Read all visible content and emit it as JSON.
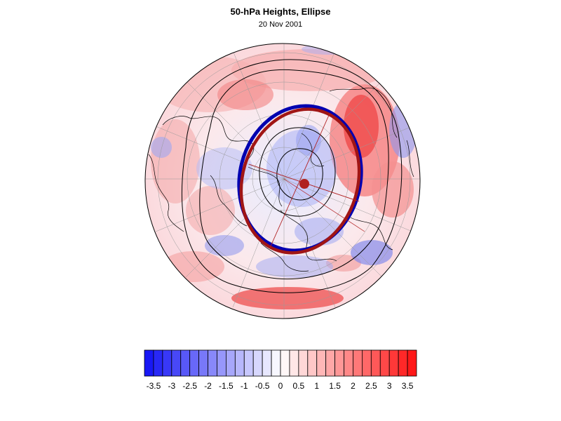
{
  "figure": {
    "title": "50-hPa Heights, Ellipse",
    "subtitle": "20 Nov 2001"
  },
  "projection": "north-polar-orthographic",
  "colors": {
    "anomaly_min": "#1010f5",
    "anomaly_mid": "#ffffff",
    "anomaly_max": "#ff1010",
    "observed_ellipse": "#0000b0",
    "climatology_ellipse": "#a01515",
    "center_marker": "#b02020",
    "contours": "#000000",
    "coastlines": "#000000"
  },
  "colorbar": {
    "orientation": "horizontal",
    "levels": [
      -3.75,
      -3.5,
      -3.25,
      -3,
      -2.75,
      -2.5,
      -2.25,
      -2,
      -1.75,
      -1.5,
      -1.25,
      -1,
      -0.75,
      -0.5,
      -0.25,
      0,
      0.25,
      0.5,
      0.75,
      1,
      1.25,
      1.5,
      1.75,
      2,
      2.25,
      2.5,
      2.75,
      3,
      3.25,
      3.5,
      3.75
    ],
    "labels": [
      "-3.5",
      "-3",
      "-2.5",
      "-2",
      "-1.5",
      "-1",
      "-0.5",
      "0",
      "0.5",
      "1",
      "1.5",
      "2",
      "2.5",
      "3",
      "3.5"
    ],
    "label_values": [
      -3.5,
      -3,
      -2.5,
      -2,
      -1.5,
      -1,
      -0.5,
      0,
      0.5,
      1,
      1.5,
      2,
      2.5,
      3,
      3.5
    ]
  }
}
